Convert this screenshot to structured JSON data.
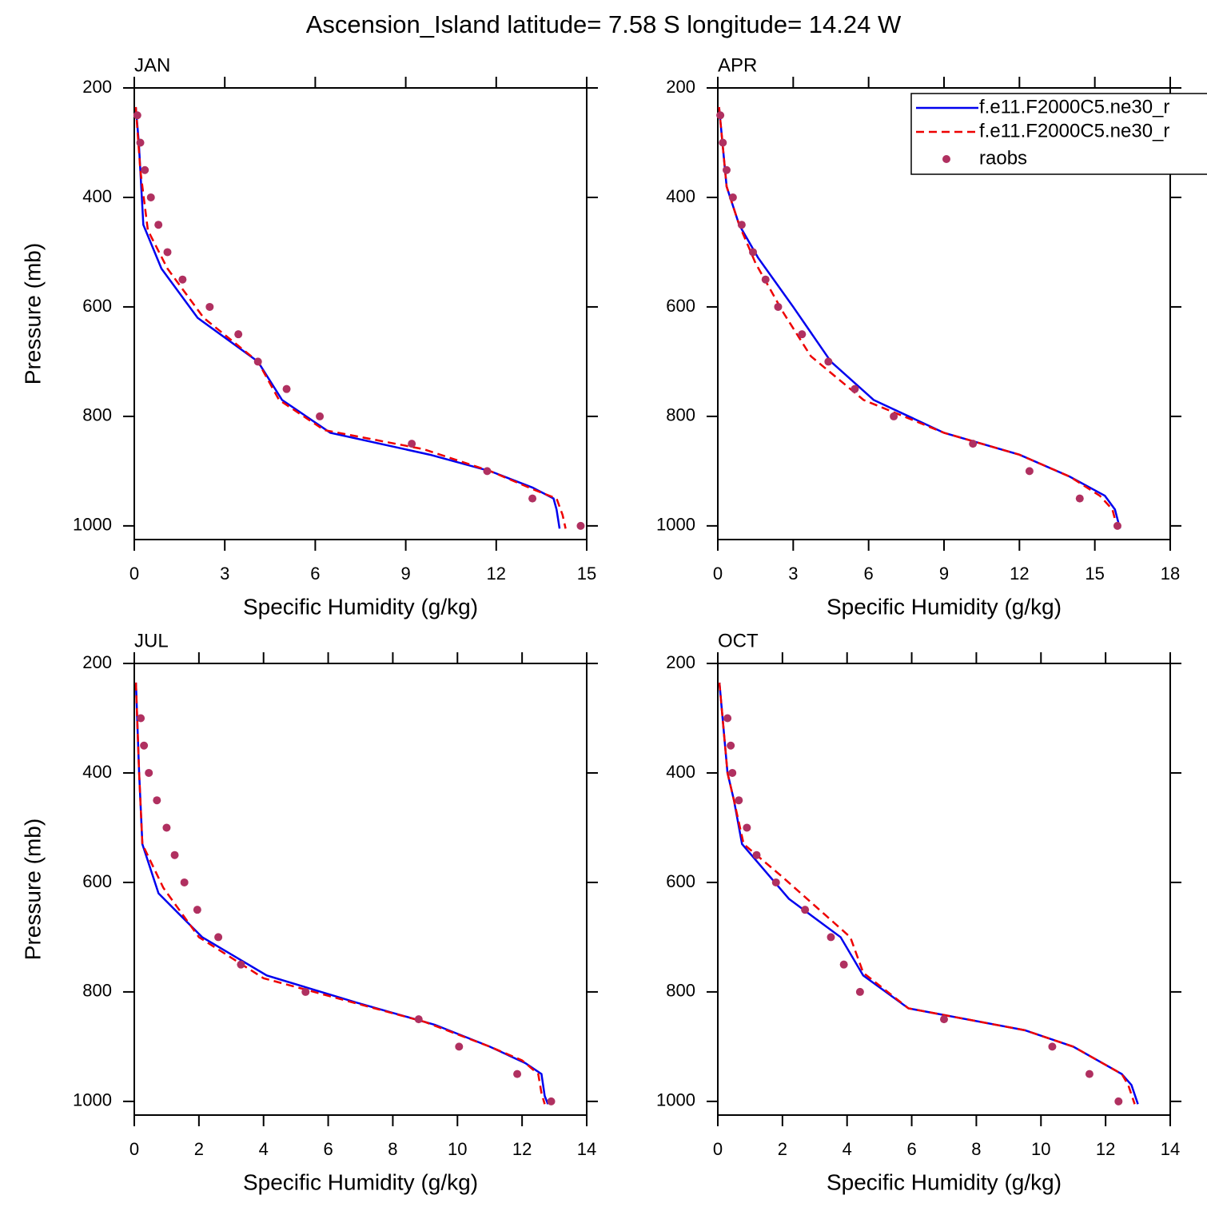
{
  "title": "Ascension_Island  latitude= 7.58 S longitude= 14.24 W",
  "chart_data": [
    {
      "type": "line",
      "title": "JAN",
      "xlabel": "Specific Humidity (g/kg)",
      "ylabel": "Pressure (mb)",
      "xlim": [
        0,
        15
      ],
      "xticks": [
        0,
        3,
        6,
        9,
        12,
        15
      ],
      "ylim": [
        1025,
        200
      ],
      "yticks": [
        200,
        400,
        600,
        800,
        1000
      ],
      "series": [
        {
          "color": "#0000ee",
          "kind": "line",
          "dash": false,
          "x": [
            0.05,
            0.15,
            0.3,
            0.9,
            2.1,
            4.1,
            4.9,
            6.5,
            9.8,
            11.8,
            13.2,
            13.9,
            14.0,
            14.1
          ],
          "y": [
            235,
            300,
            450,
            530,
            620,
            700,
            770,
            830,
            870,
            900,
            930,
            950,
            970,
            1005
          ]
        },
        {
          "color": "#ee0000",
          "kind": "line",
          "dash": true,
          "x": [
            0.05,
            0.2,
            0.45,
            1.1,
            2.3,
            4.1,
            4.8,
            6.3,
            9.6,
            11.8,
            13.3,
            14.0,
            14.2,
            14.3
          ],
          "y": [
            235,
            350,
            460,
            530,
            620,
            700,
            770,
            825,
            860,
            900,
            935,
            950,
            980,
            1005
          ]
        },
        {
          "color": "#b03060",
          "kind": "scatter",
          "x": [
            0.1,
            0.2,
            0.35,
            0.55,
            0.8,
            1.1,
            1.6,
            2.5,
            3.45,
            4.1,
            5.05,
            6.15,
            9.2,
            11.7,
            13.2,
            14.8
          ],
          "y": [
            250,
            300,
            350,
            400,
            450,
            500,
            550,
            600,
            650,
            700,
            750,
            800,
            850,
            900,
            950,
            1000
          ]
        }
      ]
    },
    {
      "type": "line",
      "title": "APR",
      "xlabel": "Specific Humidity (g/kg)",
      "xlim": [
        0,
        18
      ],
      "xticks": [
        0,
        3,
        6,
        9,
        12,
        15,
        18
      ],
      "ylim": [
        1025,
        200
      ],
      "yticks": [
        200,
        400,
        600,
        800,
        1000
      ],
      "legend": true,
      "series": [
        {
          "name": "f.e11.F2000C5.ne30_r",
          "color": "#0000ee",
          "kind": "line",
          "dash": false,
          "x": [
            0.05,
            0.35,
            0.85,
            1.6,
            3.0,
            4.5,
            6.2,
            9.0,
            12.0,
            14.0,
            15.4,
            15.8,
            16.0
          ],
          "y": [
            235,
            380,
            450,
            510,
            600,
            700,
            770,
            830,
            870,
            910,
            945,
            970,
            1005
          ]
        },
        {
          "name": "f.e11.F2000C5.ne30_r",
          "color": "#ee0000",
          "kind": "line",
          "dash": true,
          "x": [
            0.05,
            0.35,
            0.85,
            1.5,
            2.6,
            3.7,
            5.8,
            9.0,
            12.0,
            14.0,
            15.2,
            15.7,
            15.9
          ],
          "y": [
            235,
            380,
            450,
            520,
            610,
            690,
            770,
            830,
            870,
            910,
            945,
            970,
            1005
          ]
        },
        {
          "name": "raobs",
          "color": "#b03060",
          "kind": "scatter",
          "x": [
            0.1,
            0.2,
            0.35,
            0.6,
            0.95,
            1.4,
            1.9,
            2.4,
            3.35,
            4.4,
            5.45,
            7.0,
            10.15,
            12.4,
            14.4,
            15.9
          ],
          "y": [
            250,
            300,
            350,
            400,
            450,
            500,
            550,
            600,
            650,
            700,
            750,
            800,
            850,
            900,
            950,
            1000
          ]
        }
      ]
    },
    {
      "type": "line",
      "title": "JUL",
      "xlabel": "Specific Humidity (g/kg)",
      "ylabel": "Pressure (mb)",
      "xlim": [
        0,
        14
      ],
      "xticks": [
        0,
        2,
        4,
        6,
        8,
        10,
        12,
        14
      ],
      "ylim": [
        1025,
        200
      ],
      "yticks": [
        200,
        400,
        600,
        800,
        1000
      ],
      "series": [
        {
          "color": "#0000ee",
          "kind": "line",
          "dash": false,
          "x": [
            0.05,
            0.15,
            0.25,
            0.75,
            2.1,
            4.1,
            6.9,
            9.3,
            11.0,
            12.1,
            12.6,
            12.7,
            12.8
          ],
          "y": [
            235,
            400,
            530,
            620,
            700,
            770,
            820,
            860,
            900,
            930,
            950,
            990,
            1005
          ]
        },
        {
          "color": "#ee0000",
          "kind": "line",
          "dash": true,
          "x": [
            0.05,
            0.15,
            0.25,
            0.9,
            2.0,
            4.0,
            6.5,
            9.0,
            11.0,
            12.0,
            12.5,
            12.6,
            12.7
          ],
          "y": [
            235,
            400,
            530,
            610,
            700,
            775,
            815,
            855,
            900,
            925,
            950,
            985,
            1005
          ]
        },
        {
          "color": "#b03060",
          "kind": "scatter",
          "x": [
            0.2,
            0.3,
            0.45,
            0.7,
            1.0,
            1.25,
            1.55,
            1.95,
            2.6,
            3.3,
            5.3,
            8.8,
            10.05,
            11.85,
            12.9
          ],
          "y": [
            300,
            350,
            400,
            450,
            500,
            550,
            600,
            650,
            700,
            750,
            800,
            850,
            900,
            950,
            1000
          ]
        }
      ]
    },
    {
      "type": "line",
      "title": "OCT",
      "xlabel": "Specific Humidity (g/kg)",
      "xlim": [
        0,
        14
      ],
      "xticks": [
        0,
        2,
        4,
        6,
        8,
        10,
        12,
        14
      ],
      "ylim": [
        1025,
        200
      ],
      "yticks": [
        200,
        400,
        600,
        800,
        1000
      ],
      "series": [
        {
          "color": "#0000ee",
          "kind": "line",
          "dash": false,
          "x": [
            0.05,
            0.3,
            0.5,
            0.75,
            2.2,
            3.8,
            4.5,
            5.9,
            9.5,
            11.0,
            12.5,
            12.8,
            13.0
          ],
          "y": [
            235,
            400,
            450,
            530,
            630,
            700,
            770,
            830,
            870,
            900,
            950,
            970,
            1005
          ]
        },
        {
          "color": "#ee0000",
          "kind": "line",
          "dash": true,
          "x": [
            0.05,
            0.3,
            0.5,
            0.8,
            2.0,
            4.1,
            4.5,
            5.9,
            9.5,
            11.0,
            12.5,
            12.7,
            12.9
          ],
          "y": [
            235,
            400,
            450,
            530,
            590,
            700,
            765,
            830,
            870,
            900,
            950,
            970,
            1005
          ]
        },
        {
          "color": "#b03060",
          "kind": "scatter",
          "x": [
            0.3,
            0.4,
            0.45,
            0.65,
            0.9,
            1.2,
            1.8,
            2.7,
            3.5,
            3.9,
            4.4,
            7.0,
            10.35,
            11.5,
            12.4
          ],
          "y": [
            300,
            350,
            400,
            450,
            500,
            550,
            600,
            650,
            700,
            750,
            800,
            850,
            900,
            950,
            1000
          ]
        }
      ]
    }
  ]
}
